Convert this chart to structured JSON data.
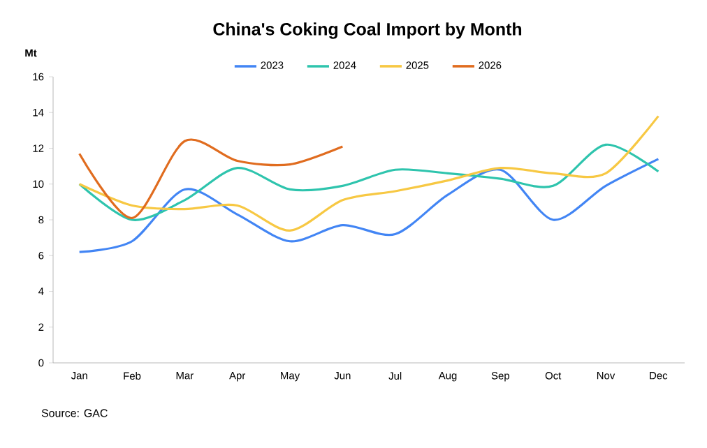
{
  "chart_data": {
    "type": "line",
    "title": "China's Coking Coal Import by Month",
    "ylabel": "Mt",
    "categories": [
      "Jan",
      "Feb",
      "Mar",
      "Apr",
      "May",
      "Jun",
      "Jul",
      "Aug",
      "Sep",
      "Oct",
      "Nov",
      "Dec"
    ],
    "series": [
      {
        "name": "2023",
        "color": "#4285f4",
        "values": [
          6.2,
          6.8,
          9.7,
          8.3,
          6.8,
          7.7,
          7.2,
          9.4,
          10.8,
          8.0,
          9.9,
          11.4
        ]
      },
      {
        "name": "2024",
        "color": "#2ec4ad",
        "values": [
          10.0,
          8.0,
          9.1,
          10.9,
          9.7,
          9.9,
          10.8,
          10.6,
          10.3,
          9.9,
          12.2,
          10.7
        ]
      },
      {
        "name": "2025",
        "color": "#f7c843",
        "values": [
          10.0,
          8.8,
          8.6,
          8.8,
          7.4,
          9.1,
          9.6,
          10.2,
          10.9,
          10.6,
          10.6,
          13.8
        ]
      },
      {
        "name": "2026",
        "color": "#e06c1f",
        "values": [
          11.7,
          8.1,
          12.4,
          11.3,
          11.1,
          12.1,
          null,
          null,
          null,
          null,
          null,
          null
        ]
      }
    ],
    "ylim": [
      0,
      16
    ],
    "yticks": [
      0,
      2,
      4,
      6,
      8,
      10,
      12,
      14,
      16
    ],
    "legend": "top",
    "annotations": [
      "Source: GAC"
    ]
  }
}
